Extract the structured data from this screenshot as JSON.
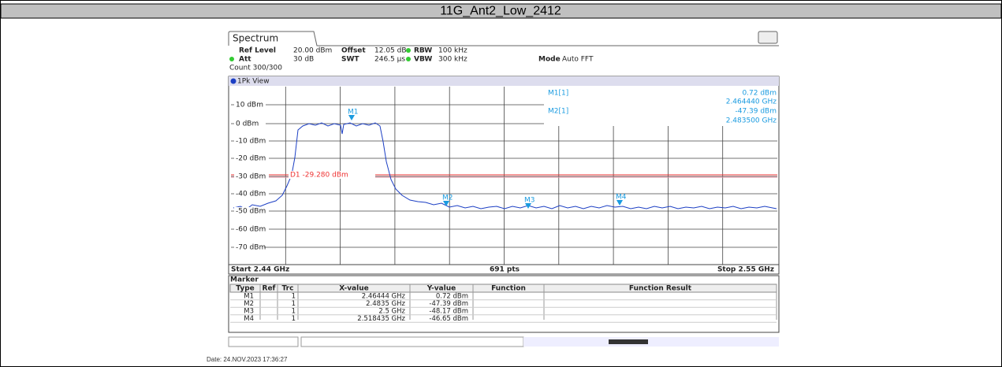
{
  "title": "11G_Ant2_Low_2412",
  "screen": {
    "tab": "Spectrum",
    "settings": [
      [
        "Ref Level",
        "20.00 dBm",
        "Offset",
        "12.05 dB",
        "RBW",
        "100 kHz"
      ],
      [
        "Att",
        "30 dB",
        "SWT",
        "246.5 µs",
        "VBW",
        "300 kHz",
        "Mode",
        "Auto FFT"
      ],
      [
        "Count 300/300"
      ]
    ],
    "view": "1Pk View",
    "y_labels": [
      "10 dBm",
      "0 dBm",
      "-10 dBm",
      "-20 dBm",
      "-30 dBm",
      "-40 dBm",
      "-50 dBm",
      "-60 dBm",
      "-70 dBm"
    ],
    "readout": [
      [
        "M1[1]",
        "0.72 dBm",
        "2.464440 GHz"
      ],
      [
        "M2[1]",
        "-47.39 dBm",
        "2.483500 GHz"
      ]
    ],
    "display_line": "D1 -29.280 dBm",
    "markers": [
      "M1",
      "M2",
      "M3",
      "M4"
    ],
    "footer": [
      "Start 2.44 GHz",
      "691 pts",
      "Stop 2.55 GHz"
    ],
    "marker_table": {
      "title": "Marker",
      "columns": [
        "Type",
        "Ref",
        "Trc",
        "X-value",
        "Y-value",
        "Function",
        "Function Result"
      ],
      "rows": [
        [
          "M1",
          "1",
          "2.46444 GHz",
          "0.72 dBm"
        ],
        [
          "M2",
          "1",
          "2.4835 GHz",
          "-47.39 dBm"
        ],
        [
          "M3",
          "1",
          "2.5 GHz",
          "-48.17 dBm"
        ],
        [
          "M4",
          "1",
          "2.518435 GHz",
          "-46.65 dBm"
        ]
      ]
    }
  },
  "date": "Date: 24.NOV.2023 17:36:27"
}
